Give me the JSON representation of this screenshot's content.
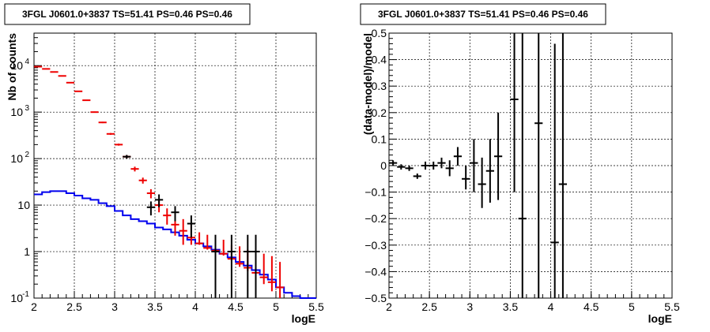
{
  "chart_data": [
    {
      "type": "line",
      "title": "3FGL J0601.0+3837 TS=51.41 PS=0.46 PS=0.46",
      "xlabel": "logE",
      "ylabel": "Nb of counts",
      "xlim": [
        2,
        5.5
      ],
      "ylim": [
        0.1,
        50000
      ],
      "yscale": "log",
      "grid": true,
      "xticks": [
        "2",
        "2.5",
        "3",
        "3.5",
        "4",
        "4.5",
        "5",
        "5.5"
      ],
      "yticks": [
        {
          "value": 0.1,
          "base": "10",
          "exp": "-1"
        },
        {
          "value": 1,
          "base": "1",
          "exp": ""
        },
        {
          "value": 10,
          "base": "10",
          "exp": ""
        },
        {
          "value": 100,
          "base": "10",
          "exp": "2"
        },
        {
          "value": 1000,
          "base": "10",
          "exp": "3"
        },
        {
          "value": 10000,
          "base": "10",
          "exp": "4"
        }
      ],
      "series": [
        {
          "color": "#0000ee",
          "style": "step",
          "x": [
            2.0,
            2.1,
            2.2,
            2.3,
            2.4,
            2.5,
            2.6,
            2.7,
            2.8,
            2.9,
            3.0,
            3.1,
            3.2,
            3.3,
            3.4,
            3.5,
            3.6,
            3.7,
            3.8,
            3.9,
            4.0,
            4.1,
            4.2,
            4.3,
            4.4,
            4.5,
            4.6,
            4.7,
            4.8,
            4.9,
            5.0,
            5.1,
            5.2,
            5.3,
            5.4
          ],
          "values": [
            17,
            19,
            20,
            20,
            18,
            16,
            14,
            13,
            11,
            9.5,
            7.5,
            6,
            5,
            4.5,
            4,
            3.3,
            3,
            2.6,
            2.2,
            1.8,
            1.5,
            1.3,
            1.1,
            0.9,
            0.75,
            0.6,
            0.5,
            0.4,
            0.32,
            0.25,
            0.17,
            0.13,
            0.11,
            0.1,
            0.1
          ]
        },
        {
          "color": "#ee0000",
          "style": "errorbar",
          "x": [
            2.05,
            2.15,
            2.25,
            2.35,
            2.45,
            2.55,
            2.65,
            2.75,
            2.85,
            2.95,
            3.05,
            3.15,
            3.25,
            3.35,
            3.45,
            3.55,
            3.65,
            3.75,
            3.85,
            3.95,
            4.05,
            4.15,
            4.25,
            4.35,
            4.45,
            4.55,
            4.65,
            4.75,
            4.85,
            4.95,
            5.05
          ],
          "values": [
            9500,
            8500,
            7300,
            6000,
            4300,
            2800,
            1800,
            1000,
            600,
            340,
            200,
            110,
            60,
            34,
            18,
            10,
            6,
            3.8,
            2.8,
            2,
            1.5,
            1.2,
            1.05,
            0.9,
            0.7,
            0.55,
            0.45,
            0.35,
            0.28,
            0.22,
            0.17
          ],
          "yerr_low": [
            9400,
            8400,
            7200,
            5920,
            4240,
            2750,
            1760,
            970,
            580,
            325,
            190,
            102,
            53,
            29,
            14,
            7,
            3.8,
            2.2,
            1.4,
            1.4,
            1.4,
            1.1,
            0.96,
            0.82,
            0.63,
            0.47,
            0.38,
            0.28,
            0.2,
            0.14,
            0.08
          ],
          "yerr_high": [
            9600,
            8600,
            7400,
            6080,
            4360,
            2850,
            1840,
            1030,
            620,
            355,
            210,
            118,
            67,
            39,
            22,
            13,
            8.5,
            5.8,
            5,
            4,
            2.6,
            2.3,
            1.9,
            1.8,
            1.4,
            1.3,
            1.1,
            1.0,
            0.9,
            0.8,
            0.6
          ]
        },
        {
          "color": "#000000",
          "style": "errorbar",
          "x": [
            3.15,
            3.45,
            3.55,
            3.75,
            3.95,
            4.25,
            4.45,
            4.65,
            4.75
          ],
          "values": [
            110,
            9,
            13,
            7,
            4,
            1,
            1,
            1,
            1
          ],
          "yerr_low": [
            100,
            6,
            9,
            4.5,
            2,
            0.1,
            0.1,
            0.1,
            0.1
          ],
          "yerr_high": [
            120,
            12,
            17,
            9.5,
            6,
            2.3,
            2.3,
            2.3,
            2.3
          ]
        }
      ]
    },
    {
      "type": "scatter",
      "title": "3FGL J0601.0+3837 TS=51.41 PS=0.46 PS=0.46",
      "xlabel": "logE",
      "ylabel": "(data-model)/model",
      "xlim": [
        2,
        5.5
      ],
      "ylim": [
        -0.5,
        0.5
      ],
      "grid": true,
      "xticks": [
        "2",
        "2.5",
        "3",
        "3.5",
        "4",
        "4.5",
        "5",
        "5.5"
      ],
      "yticks": [
        "−0.5",
        "−0.4",
        "−0.3",
        "−0.2",
        "−0.1",
        "0",
        "0.1",
        "0.2",
        "0.3",
        "0.4",
        "0.5"
      ],
      "series": [
        {
          "color": "#000000",
          "style": "errorbar",
          "x": [
            2.05,
            2.15,
            2.25,
            2.35,
            2.45,
            2.55,
            2.65,
            2.75,
            2.85,
            2.95,
            3.05,
            3.15,
            3.25,
            3.35,
            3.55,
            3.65,
            3.85,
            4.05,
            4.15
          ],
          "values": [
            0.01,
            -0.005,
            -0.01,
            -0.04,
            0.0,
            0.0,
            0.01,
            -0.01,
            0.035,
            -0.05,
            0.01,
            -0.07,
            -0.02,
            0.035,
            0.25,
            -0.2,
            0.16,
            -0.29,
            -0.07
          ],
          "yerr_low": [
            0.0,
            -0.015,
            -0.02,
            -0.05,
            -0.015,
            -0.015,
            -0.01,
            -0.04,
            0.0,
            -0.09,
            -0.1,
            -0.16,
            -0.14,
            -0.13,
            -0.1,
            -0.5,
            -0.5,
            -0.5,
            -0.5
          ],
          "yerr_high": [
            0.02,
            0.005,
            0.0,
            -0.03,
            0.015,
            0.015,
            0.03,
            0.02,
            0.07,
            0.0,
            0.1,
            0.03,
            0.1,
            0.2,
            0.5,
            0.5,
            0.5,
            0.46,
            0.5
          ]
        }
      ]
    }
  ]
}
